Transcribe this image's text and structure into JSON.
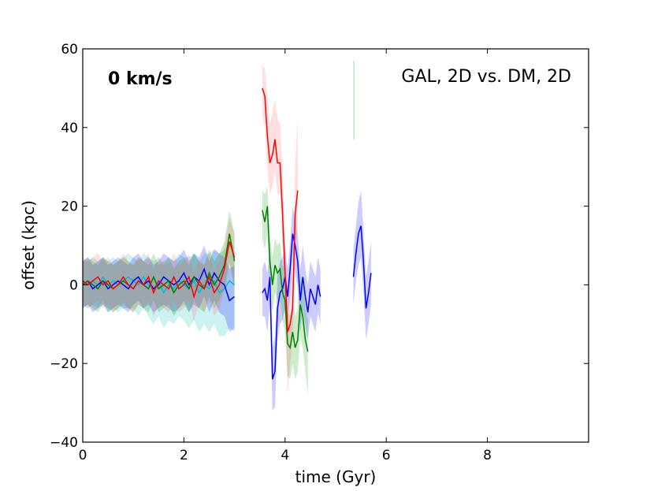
{
  "chart_data": {
    "type": "line",
    "xlabel": "time (Gyr)",
    "ylabel": "offset (kpc)",
    "xlim": [
      0,
      10
    ],
    "ylim": [
      -40,
      60
    ],
    "x_ticks": [
      "0",
      "2",
      "4",
      "6",
      "8"
    ],
    "y_ticks": [
      "60",
      "40",
      "20",
      "0",
      "−20",
      "−40"
    ],
    "x_tick_values": [
      0,
      2,
      4,
      6,
      8
    ],
    "y_tick_values": [
      60,
      40,
      20,
      0,
      -20,
      -40
    ],
    "annotation": "0 km/s",
    "legend": "GAL, 2D vs. DM, 2D",
    "legend_placement": "top-right",
    "grid": false,
    "series": [
      {
        "color": "#00bcd4",
        "band_color": "#00bfbf",
        "segments": [
          {
            "x": [
              0.0,
              0.1,
              0.2,
              0.3,
              0.4,
              0.5,
              0.6,
              0.7,
              0.8,
              0.9,
              1.0,
              1.1,
              1.2,
              1.3,
              1.4,
              1.5,
              1.6,
              1.7,
              1.8,
              1.9,
              2.0,
              2.1,
              2.2,
              2.3,
              2.4,
              2.5,
              2.6,
              2.7,
              2.8,
              2.9,
              3.0
            ],
            "y": [
              1,
              0,
              1,
              0,
              2,
              0,
              1,
              0,
              1,
              2,
              1,
              0,
              2,
              0,
              -1,
              1,
              -2,
              0,
              -1,
              1,
              0,
              -1,
              1,
              -2,
              0,
              -1,
              1,
              -2,
              -1,
              1,
              0
            ],
            "lo": [
              -5,
              -6,
              -5,
              -6,
              -4,
              -7,
              -6,
              -7,
              -6,
              -6,
              -6,
              -8,
              -6,
              -8,
              -10,
              -8,
              -11,
              -9,
              -10,
              -8,
              -9,
              -11,
              -9,
              -12,
              -10,
              -12,
              -10,
              -13,
              -13,
              -11,
              -12
            ],
            "hi": [
              6,
              6,
              7,
              6,
              7,
              6,
              7,
              6,
              7,
              8,
              7,
              6,
              8,
              7,
              6,
              7,
              5,
              7,
              6,
              8,
              7,
              7,
              8,
              6,
              8,
              8,
              9,
              8,
              9,
              10,
              10
            ]
          }
        ]
      },
      {
        "color": "#0000ff",
        "band_color": "#0000ff",
        "segments": [
          {
            "x": [
              0.0,
              0.1,
              0.2,
              0.3,
              0.4,
              0.5,
              0.6,
              0.7,
              0.8,
              0.9,
              1.0,
              1.1,
              1.2,
              1.3,
              1.4,
              1.5,
              1.6,
              1.7,
              1.8,
              1.9,
              2.0,
              2.1,
              2.2,
              2.3,
              2.4,
              2.5,
              2.6,
              2.7,
              2.8,
              2.9,
              3.0
            ],
            "y": [
              0,
              1,
              -1,
              0,
              1,
              -1,
              0,
              1,
              0,
              -1,
              1,
              2,
              0,
              1,
              -1,
              0,
              2,
              1,
              0,
              1,
              3,
              0,
              2,
              1,
              4,
              0,
              3,
              1,
              0,
              -4,
              -3
            ],
            "lo": [
              -6,
              -5,
              -7,
              -6,
              -5,
              -7,
              -6,
              -5,
              -6,
              -7,
              -5,
              -4,
              -6,
              -5,
              -7,
              -6,
              -5,
              -6,
              -7,
              -6,
              -4,
              -7,
              -5,
              -6,
              -3,
              -7,
              -4,
              -7,
              -8,
              -12,
              -11
            ],
            "hi": [
              6,
              7,
              5,
              6,
              7,
              5,
              6,
              7,
              6,
              5,
              7,
              8,
              6,
              7,
              5,
              6,
              8,
              7,
              6,
              7,
              9,
              6,
              8,
              7,
              10,
              6,
              9,
              8,
              7,
              4,
              5
            ]
          },
          {
            "x": [
              3.55,
              3.6,
              3.65,
              3.7,
              3.75,
              3.8,
              3.85,
              3.9,
              3.95,
              4.0,
              4.05,
              4.1,
              4.15,
              4.2,
              4.25,
              4.3,
              4.35,
              4.4,
              4.45,
              4.5,
              4.55,
              4.6,
              4.65,
              4.7
            ],
            "y": [
              -2,
              -1,
              -4,
              2,
              -24,
              -22,
              -6,
              -2,
              -1,
              2,
              -3,
              4,
              13,
              10,
              6,
              -4,
              2,
              -3,
              -7,
              -1,
              -3,
              -5,
              0,
              -3
            ],
            "lo": [
              -8,
              -8,
              -12,
              -5,
              -32,
              -31,
              -14,
              -10,
              -9,
              -6,
              -10,
              -3,
              6,
              3,
              -1,
              -12,
              -6,
              -10,
              -14,
              -8,
              -10,
              -12,
              -7,
              -10
            ],
            "hi": [
              4,
              6,
              3,
              9,
              -16,
              -13,
              2,
              6,
              7,
              10,
              4,
              11,
              20,
              17,
              13,
              4,
              10,
              4,
              0,
              6,
              4,
              2,
              7,
              4
            ]
          },
          {
            "x": [
              5.35,
              5.4,
              5.45,
              5.5,
              5.55,
              5.6,
              5.65,
              5.7
            ],
            "y": [
              2,
              8,
              13,
              15,
              6,
              -6,
              -2,
              3
            ],
            "lo": [
              -5,
              1,
              5,
              7,
              -2,
              -14,
              -10,
              -5
            ],
            "hi": [
              9,
              15,
              21,
              24,
              14,
              2,
              6,
              11
            ]
          }
        ]
      },
      {
        "color": "#008000",
        "band_color": "#00a000",
        "segments": [
          {
            "x": [
              0.0,
              0.1,
              0.2,
              0.3,
              0.4,
              0.5,
              0.6,
              0.7,
              0.8,
              0.9,
              1.0,
              1.1,
              1.2,
              1.3,
              1.4,
              1.5,
              1.6,
              1.7,
              1.8,
              1.9,
              2.0,
              2.1,
              2.2,
              2.3,
              2.4,
              2.5,
              2.6,
              2.7,
              2.8,
              2.9,
              3.0
            ],
            "y": [
              0,
              1,
              0,
              -1,
              1,
              0,
              -1,
              0,
              1,
              0,
              -1,
              1,
              0,
              -1,
              2,
              -1,
              0,
              1,
              -2,
              0,
              1,
              -1,
              2,
              0,
              -1,
              3,
              0,
              2,
              5,
              13,
              6
            ],
            "lo": [
              -6,
              -5,
              -6,
              -7,
              -5,
              -6,
              -7,
              -6,
              -5,
              -6,
              -7,
              -5,
              -6,
              -7,
              -4,
              -7,
              -6,
              -5,
              -8,
              -6,
              -5,
              -7,
              -4,
              -6,
              -7,
              -3,
              -6,
              -4,
              -1,
              6,
              -1
            ],
            "hi": [
              6,
              7,
              6,
              5,
              7,
              6,
              5,
              6,
              7,
              6,
              5,
              7,
              6,
              5,
              8,
              5,
              6,
              7,
              4,
              6,
              7,
              5,
              8,
              6,
              5,
              9,
              6,
              8,
              11,
              19,
              13
            ]
          },
          {
            "x": [
              3.55,
              3.6,
              3.65,
              3.7,
              3.75,
              3.8,
              3.85,
              3.9,
              3.95,
              4.0,
              4.05,
              4.1,
              4.15,
              4.2,
              4.25,
              4.3,
              4.35,
              4.4,
              4.45
            ],
            "y": [
              19,
              16,
              20,
              6,
              0,
              5,
              3,
              4,
              -2,
              -4,
              -15,
              -16,
              -12,
              -16,
              -14,
              -5,
              -8,
              -14,
              -17
            ],
            "lo": [
              12,
              9,
              13,
              -1,
              -7,
              -2,
              -4,
              -3,
              -9,
              -12,
              -23,
              -24,
              -20,
              -24,
              -22,
              -13,
              -16,
              -22,
              -28
            ],
            "hi": [
              24,
              23,
              25,
              13,
              7,
              12,
              10,
              11,
              5,
              4,
              -7,
              -8,
              -4,
              -8,
              -6,
              3,
              0,
              -6,
              -9
            ]
          },
          {
            "x": [
              5.36,
              5.36
            ],
            "y": [
              37,
              57
            ],
            "lo": [
              37,
              57
            ],
            "hi": [
              37,
              57
            ]
          }
        ]
      },
      {
        "color": "#ff0000",
        "band_color": "#ff6060",
        "segments": [
          {
            "x": [
              0.0,
              0.1,
              0.2,
              0.3,
              0.4,
              0.5,
              0.6,
              0.7,
              0.8,
              0.9,
              1.0,
              1.1,
              1.2,
              1.3,
              1.4,
              1.5,
              1.6,
              1.7,
              1.8,
              1.9,
              2.0,
              2.1,
              2.2,
              2.3,
              2.4,
              2.5,
              2.6,
              2.7,
              2.8,
              2.9,
              3.0
            ],
            "y": [
              1,
              0,
              1,
              2,
              0,
              1,
              -1,
              0,
              2,
              0,
              -1,
              1,
              0,
              2,
              -2,
              1,
              0,
              -1,
              2,
              -1,
              0,
              2,
              -3,
              1,
              -1,
              2,
              -2,
              0,
              4,
              11,
              7
            ],
            "lo": [
              -5,
              -6,
              -5,
              -4,
              -6,
              -5,
              -7,
              -6,
              -4,
              -6,
              -7,
              -5,
              -6,
              -4,
              -8,
              -5,
              -6,
              -7,
              -4,
              -7,
              -6,
              -4,
              -9,
              -5,
              -7,
              -4,
              -8,
              -6,
              -2,
              5,
              1
            ],
            "hi": [
              7,
              6,
              7,
              8,
              6,
              7,
              5,
              6,
              8,
              6,
              5,
              7,
              6,
              8,
              4,
              7,
              6,
              5,
              8,
              5,
              6,
              8,
              3,
              7,
              5,
              8,
              4,
              6,
              10,
              17,
              13
            ]
          },
          {
            "x": [
              3.55,
              3.6,
              3.65,
              3.7,
              3.75,
              3.8,
              3.85,
              3.9,
              3.95,
              4.0,
              4.05,
              4.1,
              4.15,
              4.2,
              4.25
            ],
            "y": [
              50,
              48,
              38,
              31,
              33,
              37,
              31,
              31,
              18,
              3,
              -12,
              -10,
              -6,
              18,
              24
            ],
            "lo": [
              43,
              40,
              30,
              23,
              25,
              29,
              23,
              23,
              10,
              -5,
              -28,
              -20,
              -14,
              8,
              14
            ],
            "hi": [
              56,
              55,
              48,
              41,
              44,
              47,
              42,
              41,
              30,
              12,
              -2,
              2,
              4,
              30,
              43
            ]
          }
        ]
      }
    ]
  }
}
